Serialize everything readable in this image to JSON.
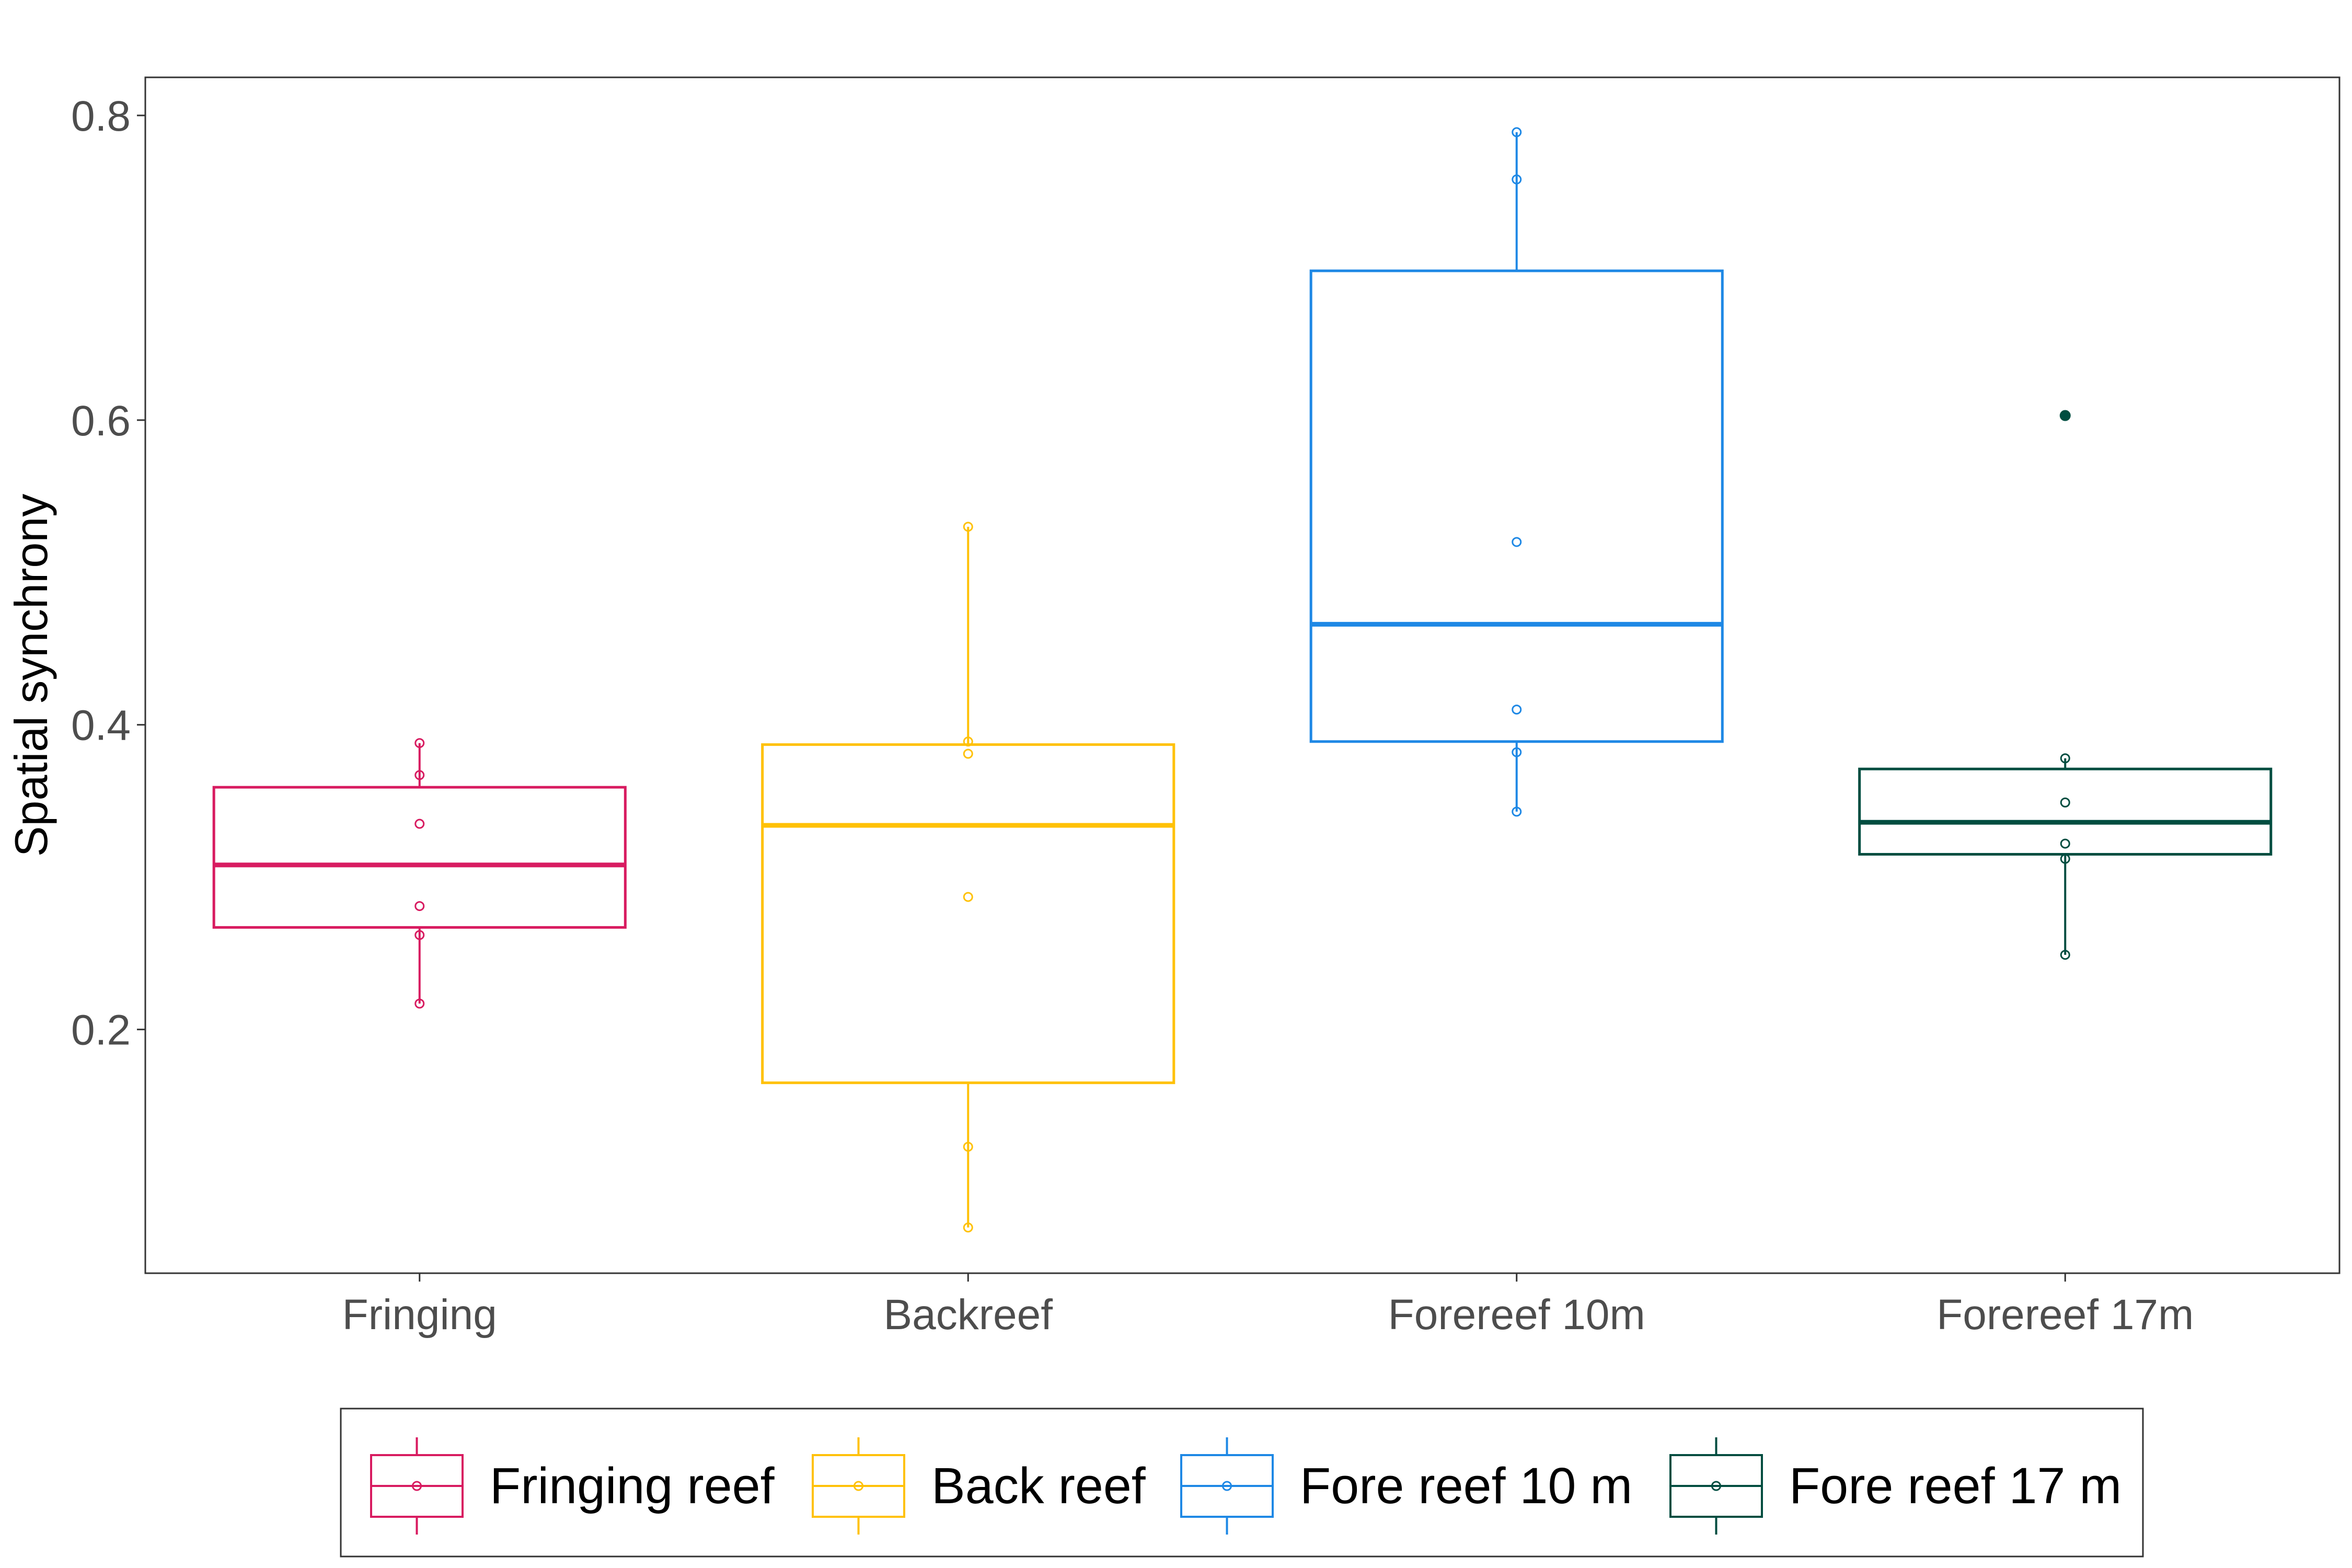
{
  "chart_data": {
    "type": "boxplot",
    "title": "",
    "xlabel": "",
    "ylabel": "Spatial synchrony",
    "ylim": [
      0.04,
      0.825
    ],
    "yticks": [
      0.2,
      0.4,
      0.6,
      0.8
    ],
    "ytick_labels": [
      "0.2",
      "0.4",
      "0.6",
      "0.8"
    ],
    "categories": [
      "Fringing",
      "Backreef",
      "Forereef 10m",
      "Forereef 17m"
    ],
    "grid": false,
    "legend_position": "bottom",
    "series": [
      {
        "name": "Fringing reef",
        "category": "Fringing",
        "color": "#d81b60",
        "q1": 0.267,
        "median": 0.308,
        "q3": 0.359,
        "whisker_low": 0.217,
        "whisker_high": 0.388,
        "outliers": [],
        "points": [
          0.388,
          0.367,
          0.335,
          0.281,
          0.262,
          0.217
        ]
      },
      {
        "name": "Back reef",
        "category": "Backreef",
        "color": "#ffc107",
        "q1": 0.165,
        "median": 0.334,
        "q3": 0.387,
        "whisker_low": 0.07,
        "whisker_high": 0.53,
        "outliers": [],
        "points": [
          0.53,
          0.389,
          0.381,
          0.287,
          0.123,
          0.07
        ]
      },
      {
        "name": "Fore reef 10 m",
        "category": "Forereef 10m",
        "color": "#1e88e5",
        "q1": 0.389,
        "median": 0.466,
        "q3": 0.698,
        "whisker_low": 0.343,
        "whisker_high": 0.789,
        "outliers": [],
        "points": [
          0.789,
          0.758,
          0.52,
          0.41,
          0.382,
          0.343
        ]
      },
      {
        "name": "Fore reef 17 m",
        "category": "Forereef 17m",
        "color": "#004d40",
        "q1": 0.315,
        "median": 0.336,
        "q3": 0.371,
        "whisker_low": 0.249,
        "whisker_high": 0.378,
        "outliers": [
          0.603
        ],
        "points": [
          0.378,
          0.349,
          0.322,
          0.312,
          0.249
        ]
      }
    ]
  }
}
